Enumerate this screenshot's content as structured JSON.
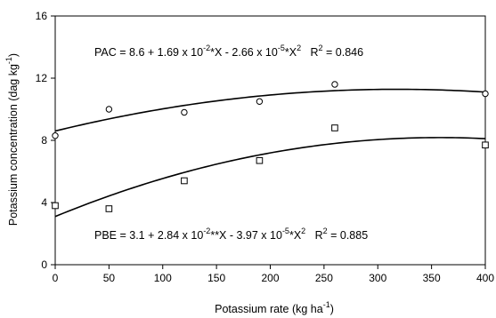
{
  "chart_data": {
    "type": "scatter",
    "xlabel": {
      "main": "Potassium rate (kg ha",
      "sup": "-1",
      "close": ")"
    },
    "ylabel": {
      "main": "Potassium concentration (dag kg",
      "sup": "-1",
      "close": ")"
    },
    "xlim": [
      0,
      400
    ],
    "ylim": [
      0,
      16
    ],
    "xticks": [
      0,
      50,
      100,
      150,
      200,
      250,
      300,
      350,
      400
    ],
    "yticks": [
      0,
      4,
      8,
      12,
      16
    ],
    "grid": false,
    "series": [
      {
        "marker": "circle",
        "x": [
          0,
          50,
          120,
          190,
          260,
          400
        ],
        "y": [
          8.3,
          10.0,
          9.8,
          10.5,
          11.6,
          11.0
        ],
        "fit": {
          "a": 8.6,
          "b": 0.0169,
          "c": -2.66e-05
        },
        "equation": {
          "p1": "PAC = 8.6 + 1.69 x 10",
          "s1": "-2",
          "p2": "*X - 2.66 x 10",
          "s2": "-5",
          "p3": "*X",
          "s3": "2",
          "p4": "   R",
          "s4": "2",
          "p5": " = 0.846"
        }
      },
      {
        "marker": "square",
        "x": [
          0,
          50,
          120,
          190,
          260,
          400
        ],
        "y": [
          3.8,
          3.6,
          5.4,
          6.7,
          8.8,
          7.7
        ],
        "fit": {
          "a": 3.1,
          "b": 0.0284,
          "c": -3.97e-05
        },
        "equation": {
          "p1": "PBE = 3.1 + 2.84 x 10",
          "s1": "-2",
          "p2": "**X - 3.97 x 10",
          "s2": "-5",
          "p3": "*X",
          "s3": "2",
          "p4": "   R",
          "s4": "2",
          "p5": " = 0.885"
        }
      }
    ]
  }
}
